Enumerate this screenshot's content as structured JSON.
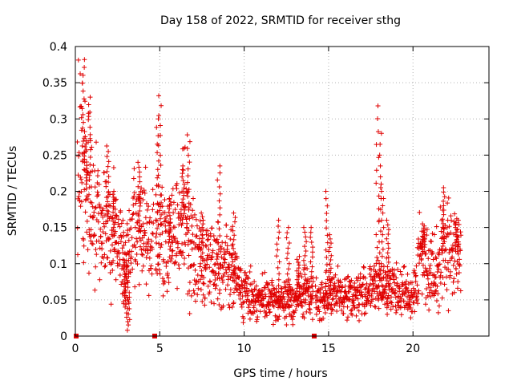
{
  "chart_data": {
    "type": "scatter",
    "title": "Day 158 of 2022, SRMTID for receiver sthg",
    "xlabel": "GPS time / hours",
    "ylabel": "SRMTID / TECUs",
    "xlim": [
      0,
      24.5
    ],
    "ylim": [
      0,
      0.4
    ],
    "x_ticks": [
      0,
      5,
      10,
      15,
      20
    ],
    "x_tick_labels": [
      "0",
      "5",
      "10",
      "15",
      "20"
    ],
    "y_ticks": [
      0,
      0.05,
      0.1,
      0.15,
      0.2,
      0.25,
      0.3,
      0.35,
      0.4
    ],
    "y_tick_labels": [
      "0",
      "0.05",
      "0.1",
      "0.15",
      "0.2",
      "0.25",
      "0.3",
      "0.35",
      "0.4"
    ],
    "grid": true,
    "marker": "+",
    "color": "#e00000",
    "gap_markers_x": [
      0.05,
      4.7,
      14.15
    ],
    "trend": [
      {
        "x": 0.0,
        "y": 0.21
      },
      {
        "x": 0.3,
        "y": 0.25
      },
      {
        "x": 0.6,
        "y": 0.21
      },
      {
        "x": 1.0,
        "y": 0.17
      },
      {
        "x": 1.5,
        "y": 0.15
      },
      {
        "x": 2.0,
        "y": 0.16
      },
      {
        "x": 2.5,
        "y": 0.13
      },
      {
        "x": 3.0,
        "y": 0.1
      },
      {
        "x": 3.5,
        "y": 0.14
      },
      {
        "x": 4.0,
        "y": 0.15
      },
      {
        "x": 4.5,
        "y": 0.13
      },
      {
        "x": 5.0,
        "y": 0.14
      },
      {
        "x": 5.5,
        "y": 0.12
      },
      {
        "x": 6.0,
        "y": 0.14
      },
      {
        "x": 6.5,
        "y": 0.17
      },
      {
        "x": 7.0,
        "y": 0.11
      },
      {
        "x": 7.5,
        "y": 0.1
      },
      {
        "x": 8.0,
        "y": 0.11
      },
      {
        "x": 8.5,
        "y": 0.1
      },
      {
        "x": 9.0,
        "y": 0.1
      },
      {
        "x": 9.5,
        "y": 0.08
      },
      {
        "x": 10.0,
        "y": 0.06
      },
      {
        "x": 10.5,
        "y": 0.055
      },
      {
        "x": 11.0,
        "y": 0.05
      },
      {
        "x": 11.5,
        "y": 0.05
      },
      {
        "x": 12.0,
        "y": 0.045
      },
      {
        "x": 12.5,
        "y": 0.05
      },
      {
        "x": 13.0,
        "y": 0.05
      },
      {
        "x": 13.5,
        "y": 0.06
      },
      {
        "x": 14.0,
        "y": 0.055
      },
      {
        "x": 14.5,
        "y": 0.05
      },
      {
        "x": 15.0,
        "y": 0.06
      },
      {
        "x": 15.5,
        "y": 0.055
      },
      {
        "x": 16.0,
        "y": 0.06
      },
      {
        "x": 16.5,
        "y": 0.055
      },
      {
        "x": 17.0,
        "y": 0.06
      },
      {
        "x": 17.5,
        "y": 0.065
      },
      {
        "x": 18.0,
        "y": 0.07
      },
      {
        "x": 18.5,
        "y": 0.07
      },
      {
        "x": 19.0,
        "y": 0.06
      },
      {
        "x": 19.5,
        "y": 0.06
      },
      {
        "x": 20.0,
        "y": 0.055
      },
      {
        "x": 20.5,
        "y": 0.12
      },
      {
        "x": 21.0,
        "y": 0.09
      },
      {
        "x": 21.5,
        "y": 0.1
      },
      {
        "x": 22.0,
        "y": 0.13
      },
      {
        "x": 22.5,
        "y": 0.11
      },
      {
        "x": 22.8,
        "y": 0.12
      }
    ],
    "peaks": [
      {
        "x": 0.45,
        "y": 0.382
      },
      {
        "x": 0.6,
        "y": 0.27
      },
      {
        "x": 0.85,
        "y": 0.33
      },
      {
        "x": 1.9,
        "y": 0.255
      },
      {
        "x": 2.3,
        "y": 0.2
      },
      {
        "x": 2.9,
        "y": 0.04
      },
      {
        "x": 3.05,
        "y": 0.02
      },
      {
        "x": 3.15,
        "y": 0.008
      },
      {
        "x": 3.8,
        "y": 0.24
      },
      {
        "x": 4.85,
        "y": 0.3
      },
      {
        "x": 5.0,
        "y": 0.332
      },
      {
        "x": 5.6,
        "y": 0.19
      },
      {
        "x": 6.4,
        "y": 0.235
      },
      {
        "x": 6.7,
        "y": 0.278
      },
      {
        "x": 7.5,
        "y": 0.17
      },
      {
        "x": 8.5,
        "y": 0.235
      },
      {
        "x": 9.4,
        "y": 0.17
      },
      {
        "x": 12.0,
        "y": 0.16
      },
      {
        "x": 12.6,
        "y": 0.15
      },
      {
        "x": 13.2,
        "y": 0.11
      },
      {
        "x": 13.6,
        "y": 0.15
      },
      {
        "x": 14.0,
        "y": 0.15
      },
      {
        "x": 14.9,
        "y": 0.2
      },
      {
        "x": 15.1,
        "y": 0.14
      },
      {
        "x": 17.9,
        "y": 0.318
      },
      {
        "x": 18.05,
        "y": 0.28
      },
      {
        "x": 18.2,
        "y": 0.21
      },
      {
        "x": 18.5,
        "y": 0.16
      },
      {
        "x": 20.6,
        "y": 0.155
      },
      {
        "x": 21.8,
        "y": 0.205
      },
      {
        "x": 22.6,
        "y": 0.16
      }
    ]
  }
}
